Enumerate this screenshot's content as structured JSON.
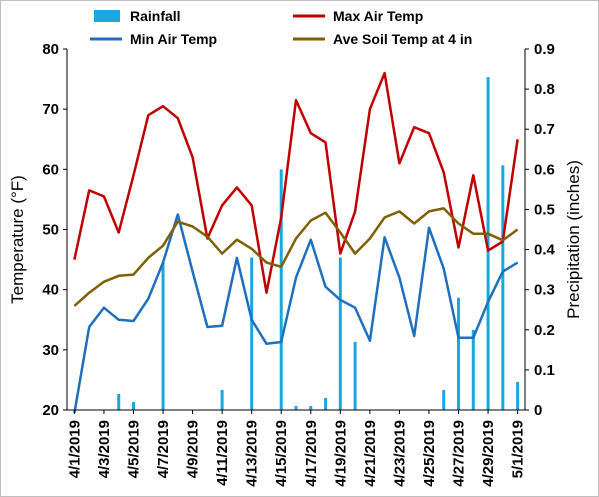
{
  "chart_data": {
    "type": "bar+line",
    "x": [
      "4/1/2019",
      "4/2/2019",
      "4/3/2019",
      "4/4/2019",
      "4/5/2019",
      "4/6/2019",
      "4/7/2019",
      "4/8/2019",
      "4/9/2019",
      "4/10/2019",
      "4/11/2019",
      "4/12/2019",
      "4/13/2019",
      "4/14/2019",
      "4/15/2019",
      "4/16/2019",
      "4/17/2019",
      "4/18/2019",
      "4/19/2019",
      "4/20/2019",
      "4/21/2019",
      "4/22/2019",
      "4/23/2019",
      "4/24/2019",
      "4/25/2019",
      "4/26/2019",
      "4/27/2019",
      "4/28/2019",
      "4/29/2019",
      "4/30/2019",
      "5/1/2019"
    ],
    "x_tick_labels": [
      "4/1/2019",
      "4/3/2019",
      "4/5/2019",
      "4/7/2019",
      "4/9/2019",
      "4/11/2019",
      "4/13/2019",
      "4/15/2019",
      "4/17/2019",
      "4/19/2019",
      "4/21/2019",
      "4/23/2019",
      "4/25/2019",
      "4/27/2019",
      "4/29/2019",
      "5/1/2019"
    ],
    "y_left": {
      "label": "Temperature (°F)",
      "range": [
        20,
        80
      ],
      "ticks": [
        "20",
        "30",
        "40",
        "50",
        "60",
        "70",
        "80"
      ]
    },
    "y_right": {
      "label": "Precipitation (inches)",
      "range": [
        0,
        0.9
      ],
      "ticks": [
        "0",
        "0.1",
        "0.2",
        "0.3",
        "0.4",
        "0.5",
        "0.6",
        "0.7",
        "0.8",
        "0.9"
      ]
    },
    "legend_position": "top",
    "series": [
      {
        "name": "Rainfall",
        "type": "bar",
        "axis": "right",
        "color": "#1aa7e0",
        "values": [
          0,
          0,
          0,
          0.04,
          0.02,
          0,
          0.37,
          0,
          0,
          0,
          0.05,
          0,
          0.38,
          0,
          0.6,
          0.01,
          0.01,
          0.03,
          0.38,
          0.17,
          0,
          0,
          0,
          0,
          0,
          0.05,
          0.28,
          0.2,
          0.83,
          0.61,
          0.07
        ]
      },
      {
        "name": "Max Air Temp",
        "type": "line",
        "axis": "left",
        "color": "#c00000",
        "values": [
          45,
          56.5,
          55.5,
          49.5,
          59,
          69,
          70.5,
          68.5,
          62,
          48.5,
          54,
          57,
          54,
          39.5,
          52,
          71.5,
          66,
          64.5,
          46,
          53,
          70,
          76,
          61,
          67,
          66,
          59.5,
          47,
          59,
          46.5,
          48,
          65
        ]
      },
      {
        "name": "Min Air Temp",
        "type": "line",
        "axis": "left",
        "color": "#1f6fbf",
        "values": [
          19.5,
          33.8,
          37,
          35,
          34.8,
          38.5,
          44.5,
          52.5,
          43,
          33.8,
          34,
          45.3,
          35,
          31,
          31.3,
          42,
          48.3,
          40.5,
          38.3,
          37,
          31.5,
          48.7,
          42,
          32.3,
          50.3,
          43.5,
          32,
          32,
          38,
          43,
          44.5
        ]
      },
      {
        "name": "Ave Soil Temp at 4 in",
        "type": "line",
        "axis": "left",
        "color": "#7f6000",
        "values": [
          37.3,
          39.5,
          41.3,
          42.3,
          42.5,
          45.3,
          47.3,
          51.3,
          50.5,
          48.8,
          46,
          48.3,
          46.8,
          44.5,
          43.8,
          48.5,
          51.5,
          52.8,
          49.5,
          46,
          48.5,
          52,
          53,
          51,
          53,
          53.5,
          51,
          49.3,
          49.3,
          48.2,
          50
        ]
      }
    ]
  }
}
